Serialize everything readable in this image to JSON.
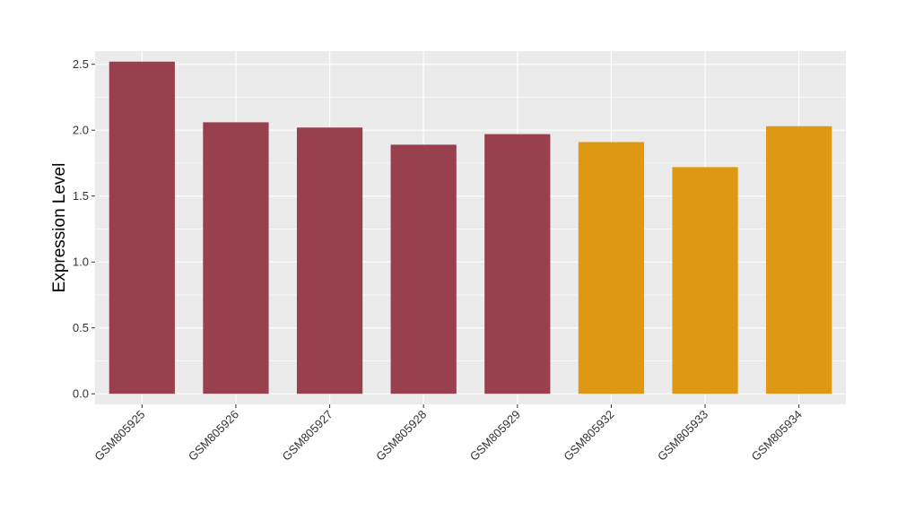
{
  "chart_data": {
    "type": "bar",
    "title": "",
    "xlabel": "",
    "ylabel": "Expression Level",
    "ylim": [
      -0.08,
      2.6
    ],
    "yticks": [
      0.0,
      0.5,
      1.0,
      1.5,
      2.0,
      2.5
    ],
    "ytick_labels": [
      "0.0",
      "0.5",
      "1.0",
      "1.5",
      "2.0",
      "2.5"
    ],
    "grid": true,
    "legend": "none",
    "categories": [
      "GSM805925",
      "GSM805926",
      "GSM805927",
      "GSM805928",
      "GSM805929",
      "GSM805932",
      "GSM805933",
      "GSM805934"
    ],
    "values": [
      2.52,
      2.06,
      2.02,
      1.89,
      1.97,
      1.91,
      1.72,
      2.03
    ],
    "bar_colors": [
      "#99404f",
      "#99404f",
      "#99404f",
      "#99404f",
      "#99404f",
      "#de9813",
      "#de9813",
      "#de9813"
    ],
    "colors": {
      "panel_background": "#ebebeb",
      "grid": "#ffffff",
      "group_1": "#99404f",
      "group_2": "#de9813"
    }
  }
}
